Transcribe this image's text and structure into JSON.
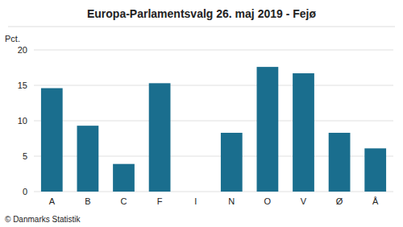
{
  "chart_data": {
    "type": "bar",
    "title": "Europa-Parlamentsvalg 26. maj 2019 - Fejø",
    "categories": [
      "A",
      "B",
      "C",
      "F",
      "I",
      "N",
      "O",
      "V",
      "Ø",
      "Å"
    ],
    "values": [
      14.6,
      9.3,
      3.9,
      15.3,
      0.0,
      8.3,
      17.6,
      16.7,
      8.3,
      6.1
    ],
    "color": "#1a6e8e",
    "ylabel": "Pct.",
    "ylim": [
      0,
      20
    ],
    "yticks": [
      0,
      5,
      10,
      15,
      20
    ],
    "grid": true,
    "footnote": "© Danmarks Statistik"
  }
}
